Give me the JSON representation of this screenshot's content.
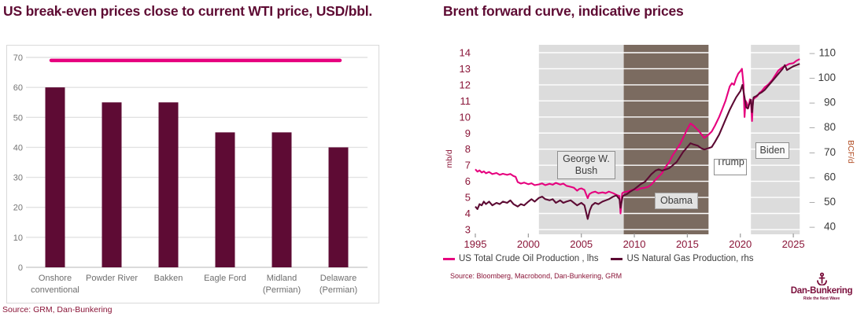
{
  "left_panel": {
    "title": "US break-even prices close to current WTI price, USD/bbl.",
    "source": "Source: GRM, Dan-Bunkering"
  },
  "right_panel": {
    "title": "Brent forward curve, indicative prices",
    "source": "Source: Bloomberg, Macrobond, Dan-Bunkering, GRM",
    "legend": [
      {
        "label": "US Total Crude Oil Production , lhs",
        "color": "#e6007e"
      },
      {
        "label": "US Natural Gas Production, rhs",
        "color": "#5c0a33"
      }
    ],
    "logo": {
      "icon": "anchor-icon",
      "name": "Dan-Bunkering",
      "tagline": "Ride the Next Wave",
      "color": "#7a0e3b"
    }
  },
  "colors": {
    "title": "#5e0b33",
    "bar": "#5e0b34",
    "pink": "#e6007e",
    "dark_line": "#5c0a33",
    "gridline": "#e2e2e2",
    "axis_gray": "#757575",
    "axis_maroon": "#8a1538",
    "band_gray": "#dcdcdc",
    "band_brown": "#7b6b60",
    "rhs_label": "#b04a21"
  },
  "chart_data": [
    {
      "type": "bar",
      "title": "US break-even prices close to current WTI price, USD/bbl.",
      "categories": [
        "Onshore conventional",
        "Powder River",
        "Bakken",
        "Eagle Ford",
        "Midland (Permian)",
        "Delaware (Permian)"
      ],
      "category_lines": [
        [
          "Onshore",
          "conventional"
        ],
        [
          "Powder River"
        ],
        [
          "Bakken"
        ],
        [
          "Eagle Ford"
        ],
        [
          "Midland",
          "(Permian)"
        ],
        [
          "Delaware",
          "(Permian)"
        ]
      ],
      "values": [
        60,
        55,
        55,
        45,
        45,
        40
      ],
      "reference_line": {
        "value": 69,
        "color": "#e6007e",
        "meaning": "current WTI price"
      },
      "ylim": [
        0,
        70
      ],
      "yticks": [
        0,
        10,
        20,
        30,
        40,
        50,
        60,
        70
      ],
      "grid": true,
      "bar_color": "#5e0b34",
      "source": "Source: GRM, Dan-Bunkering"
    },
    {
      "type": "line",
      "title": "Brent forward curve, indicative prices",
      "xlim": [
        1994.6,
        2026.2
      ],
      "xticks": [
        1995,
        2000,
        2005,
        2010,
        2015,
        2020,
        2025
      ],
      "ylabel_left": "mb/d",
      "ylim_left": [
        3,
        14
      ],
      "yticks_left": [
        3,
        4,
        5,
        6,
        7,
        8,
        9,
        10,
        11,
        12,
        13,
        14
      ],
      "ylabel_right": "BCF/d",
      "ylim_right": [
        40,
        110
      ],
      "yticks_right": [
        40,
        50,
        60,
        70,
        80,
        90,
        100,
        110
      ],
      "grid": "white-on-bands",
      "legend_position": "bottom",
      "bands": [
        {
          "label": "George W. Bush",
          "from": 2001,
          "to": 2009,
          "color": "#dcdcdc"
        },
        {
          "label": "Obama",
          "from": 2009,
          "to": 2017,
          "color": "#7b6b60"
        },
        {
          "label": "Trump",
          "from": 2017,
          "to": 2021,
          "color": "#ffffff"
        },
        {
          "label": "Biden",
          "from": 2021,
          "to": 2025.6,
          "color": "#dcdcdc"
        }
      ],
      "series": [
        {
          "name": "US Total Crude Oil Production , lhs",
          "axis": "left",
          "color": "#e6007e",
          "points": [
            [
              1995.0,
              6.75
            ],
            [
              1995.2,
              6.6
            ],
            [
              1995.4,
              6.68
            ],
            [
              1995.6,
              6.55
            ],
            [
              1995.8,
              6.62
            ],
            [
              1996.0,
              6.5
            ],
            [
              1996.3,
              6.58
            ],
            [
              1996.6,
              6.45
            ],
            [
              1997.0,
              6.52
            ],
            [
              1997.3,
              6.4
            ],
            [
              1997.6,
              6.47
            ],
            [
              1998.0,
              6.4
            ],
            [
              1998.3,
              6.46
            ],
            [
              1998.6,
              6.33
            ],
            [
              1998.8,
              6.28
            ],
            [
              1999.0,
              5.95
            ],
            [
              1999.3,
              5.86
            ],
            [
              1999.6,
              5.92
            ],
            [
              2000.0,
              5.82
            ],
            [
              2000.3,
              5.88
            ],
            [
              2000.6,
              5.76
            ],
            [
              2001.0,
              5.81
            ],
            [
              2001.3,
              5.87
            ],
            [
              2001.6,
              5.76
            ],
            [
              2002.0,
              5.85
            ],
            [
              2002.3,
              5.79
            ],
            [
              2002.6,
              5.9
            ],
            [
              2003.0,
              5.8
            ],
            [
              2003.3,
              5.86
            ],
            [
              2003.6,
              5.72
            ],
            [
              2004.0,
              5.66
            ],
            [
              2004.3,
              5.6
            ],
            [
              2004.6,
              5.42
            ],
            [
              2004.8,
              5.52
            ],
            [
              2005.0,
              5.56
            ],
            [
              2005.3,
              5.46
            ],
            [
              2005.6,
              4.95
            ],
            [
              2005.75,
              5.2
            ],
            [
              2006.0,
              5.3
            ],
            [
              2006.3,
              5.36
            ],
            [
              2006.6,
              5.26
            ],
            [
              2007.0,
              5.31
            ],
            [
              2007.3,
              5.26
            ],
            [
              2007.6,
              5.36
            ],
            [
              2008.0,
              5.26
            ],
            [
              2008.3,
              5.16
            ],
            [
              2008.6,
              5.08
            ],
            [
              2008.7,
              4.0
            ],
            [
              2008.85,
              5.25
            ],
            [
              2009.0,
              5.32
            ],
            [
              2009.3,
              5.36
            ],
            [
              2009.6,
              5.42
            ],
            [
              2010.0,
              5.5
            ],
            [
              2010.3,
              5.46
            ],
            [
              2010.6,
              5.56
            ],
            [
              2011.0,
              5.6
            ],
            [
              2011.3,
              5.66
            ],
            [
              2011.6,
              5.8
            ],
            [
              2012.0,
              6.1
            ],
            [
              2012.3,
              6.3
            ],
            [
              2012.6,
              6.5
            ],
            [
              2013.0,
              6.95
            ],
            [
              2013.3,
              7.2
            ],
            [
              2013.6,
              7.6
            ],
            [
              2014.0,
              8.0
            ],
            [
              2014.3,
              8.3
            ],
            [
              2014.6,
              8.7
            ],
            [
              2015.0,
              9.25
            ],
            [
              2015.3,
              9.6
            ],
            [
              2015.6,
              9.45
            ],
            [
              2015.8,
              9.3
            ],
            [
              2016.0,
              9.2
            ],
            [
              2016.3,
              8.95
            ],
            [
              2016.6,
              8.7
            ],
            [
              2016.8,
              8.8
            ],
            [
              2017.0,
              8.9
            ],
            [
              2017.3,
              9.1
            ],
            [
              2017.6,
              9.45
            ],
            [
              2018.0,
              10.0
            ],
            [
              2018.3,
              10.5
            ],
            [
              2018.6,
              11.0
            ],
            [
              2019.0,
              11.9
            ],
            [
              2019.2,
              12.1
            ],
            [
              2019.4,
              12.0
            ],
            [
              2019.6,
              12.4
            ],
            [
              2019.8,
              12.7
            ],
            [
              2020.0,
              12.85
            ],
            [
              2020.15,
              13.0
            ],
            [
              2020.3,
              12.0
            ],
            [
              2020.4,
              10.0
            ],
            [
              2020.5,
              11.0
            ],
            [
              2020.6,
              10.9
            ],
            [
              2020.75,
              10.55
            ],
            [
              2020.9,
              11.1
            ],
            [
              2021.0,
              11.0
            ],
            [
              2021.1,
              9.75
            ],
            [
              2021.2,
              11.1
            ],
            [
              2021.4,
              11.2
            ],
            [
              2021.6,
              11.3
            ],
            [
              2021.8,
              11.5
            ],
            [
              2022.0,
              11.6
            ],
            [
              2022.3,
              11.85
            ],
            [
              2022.6,
              12.0
            ],
            [
              2023.0,
              12.3
            ],
            [
              2023.3,
              12.6
            ],
            [
              2023.6,
              12.9
            ],
            [
              2024.0,
              13.1
            ],
            [
              2024.3,
              13.2
            ],
            [
              2024.6,
              13.3
            ],
            [
              2025.0,
              13.35
            ],
            [
              2025.3,
              13.5
            ],
            [
              2025.6,
              13.6
            ]
          ]
        },
        {
          "name": "US Natural Gas Production, rhs",
          "axis": "right",
          "color": "#5c0a33",
          "points": [
            [
              1995.0,
              48
            ],
            [
              1995.2,
              47
            ],
            [
              1995.4,
              49
            ],
            [
              1995.6,
              48.5
            ],
            [
              1995.8,
              50
            ],
            [
              1996.0,
              49
            ],
            [
              1996.3,
              50
            ],
            [
              1996.6,
              48.5
            ],
            [
              1997.0,
              49.5
            ],
            [
              1997.3,
              49
            ],
            [
              1997.6,
              50
            ],
            [
              1998.0,
              49.5
            ],
            [
              1998.3,
              50.5
            ],
            [
              1998.6,
              49
            ],
            [
              1999.0,
              48
            ],
            [
              1999.3,
              49
            ],
            [
              1999.6,
              48.5
            ],
            [
              2000.0,
              50
            ],
            [
              2000.3,
              51
            ],
            [
              2000.6,
              50
            ],
            [
              2001.0,
              51.5
            ],
            [
              2001.3,
              52
            ],
            [
              2001.6,
              51
            ],
            [
              2002.0,
              50.5
            ],
            [
              2002.3,
              51
            ],
            [
              2002.6,
              49.5
            ],
            [
              2003.0,
              50.5
            ],
            [
              2003.3,
              49.5
            ],
            [
              2003.6,
              50
            ],
            [
              2004.0,
              50.5
            ],
            [
              2004.3,
              49.5
            ],
            [
              2004.6,
              48.5
            ],
            [
              2005.0,
              49.5
            ],
            [
              2005.3,
              48.5
            ],
            [
              2005.6,
              43
            ],
            [
              2005.8,
              46.5
            ],
            [
              2006.0,
              48.5
            ],
            [
              2006.3,
              49.5
            ],
            [
              2006.6,
              49
            ],
            [
              2007.0,
              50
            ],
            [
              2007.3,
              50.5
            ],
            [
              2007.6,
              51
            ],
            [
              2008.0,
              52
            ],
            [
              2008.3,
              52.5
            ],
            [
              2008.6,
              51
            ],
            [
              2008.7,
              47.5
            ],
            [
              2008.9,
              52
            ],
            [
              2009.0,
              52.5
            ],
            [
              2009.3,
              53
            ],
            [
              2009.6,
              54
            ],
            [
              2010.0,
              55
            ],
            [
              2010.3,
              56
            ],
            [
              2010.6,
              57
            ],
            [
              2011.0,
              58
            ],
            [
              2011.3,
              59.5
            ],
            [
              2011.6,
              61
            ],
            [
              2012.0,
              62.5
            ],
            [
              2012.3,
              63
            ],
            [
              2012.6,
              62.5
            ],
            [
              2013.0,
              63
            ],
            [
              2013.3,
              63.5
            ],
            [
              2013.6,
              64.5
            ],
            [
              2014.0,
              66
            ],
            [
              2014.3,
              68
            ],
            [
              2014.6,
              70
            ],
            [
              2015.0,
              72
            ],
            [
              2015.3,
              73.5
            ],
            [
              2015.6,
              73
            ],
            [
              2016.0,
              72.5
            ],
            [
              2016.3,
              71.5
            ],
            [
              2016.6,
              71
            ],
            [
              2017.0,
              71.5
            ],
            [
              2017.3,
              72
            ],
            [
              2017.6,
              74
            ],
            [
              2018.0,
              77
            ],
            [
              2018.3,
              80
            ],
            [
              2018.6,
              83
            ],
            [
              2019.0,
              87
            ],
            [
              2019.3,
              89.5
            ],
            [
              2019.6,
              92
            ],
            [
              2020.0,
              94.5
            ],
            [
              2020.2,
              97
            ],
            [
              2020.4,
              92
            ],
            [
              2020.55,
              88
            ],
            [
              2020.7,
              87.5
            ],
            [
              2020.9,
              90
            ],
            [
              2021.0,
              91
            ],
            [
              2021.1,
              86
            ],
            [
              2021.25,
              92
            ],
            [
              2021.5,
              92.5
            ],
            [
              2021.8,
              93.5
            ],
            [
              2022.0,
              94
            ],
            [
              2022.3,
              95
            ],
            [
              2022.6,
              96.5
            ],
            [
              2023.0,
              98.5
            ],
            [
              2023.3,
              100
            ],
            [
              2023.6,
              101.5
            ],
            [
              2024.0,
              103.5
            ],
            [
              2024.2,
              105
            ],
            [
              2024.4,
              103
            ],
            [
              2024.6,
              103.5
            ],
            [
              2025.0,
              104.5
            ],
            [
              2025.3,
              105
            ],
            [
              2025.6,
              105.5
            ]
          ]
        }
      ],
      "source": "Source: Bloomberg, Macrobond, Dan-Bunkering, GRM"
    }
  ]
}
